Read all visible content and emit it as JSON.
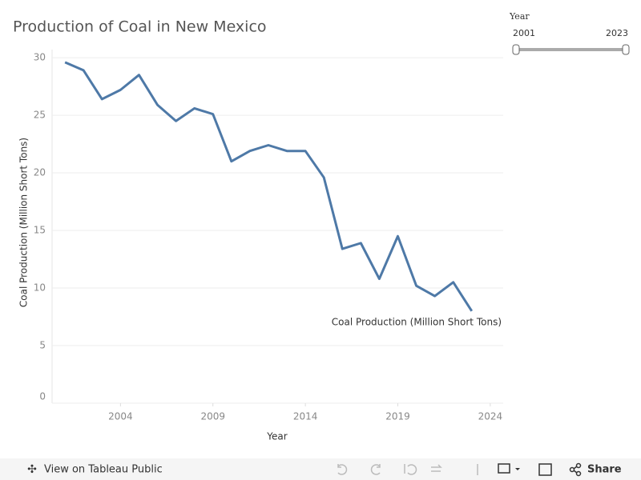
{
  "chart_data": {
    "type": "line",
    "title": "Production of Coal in New Mexico",
    "x": [
      2001,
      2002,
      2003,
      2004,
      2005,
      2006,
      2007,
      2008,
      2009,
      2010,
      2011,
      2012,
      2013,
      2014,
      2015,
      2016,
      2017,
      2018,
      2019,
      2020,
      2021,
      2022,
      2023
    ],
    "series": [
      {
        "name": "Coal Production (Million Short Tons)",
        "color": "#4e79a7",
        "values": [
          29.6,
          28.9,
          26.4,
          27.2,
          28.5,
          25.9,
          24.5,
          25.6,
          25.1,
          21.0,
          21.9,
          22.4,
          21.9,
          21.9,
          19.6,
          13.4,
          13.9,
          10.8,
          14.5,
          10.2,
          9.3,
          10.5,
          8.0
        ]
      }
    ],
    "xlabel": "Year",
    "ylabel": "Coal Production (Million Short Tons)",
    "xlim": [
      2000.3,
      2024.7
    ],
    "ylim": [
      0,
      30.7
    ],
    "xticks": [
      2004,
      2009,
      2014,
      2019,
      2024
    ],
    "yticks": [
      0,
      5,
      10,
      15,
      20,
      25,
      30
    ],
    "grid": true
  },
  "filter": {
    "label": "Year",
    "min": 2001,
    "max": 2023
  },
  "toolbar": {
    "link": "View on Tableau Public",
    "share": "Share"
  }
}
